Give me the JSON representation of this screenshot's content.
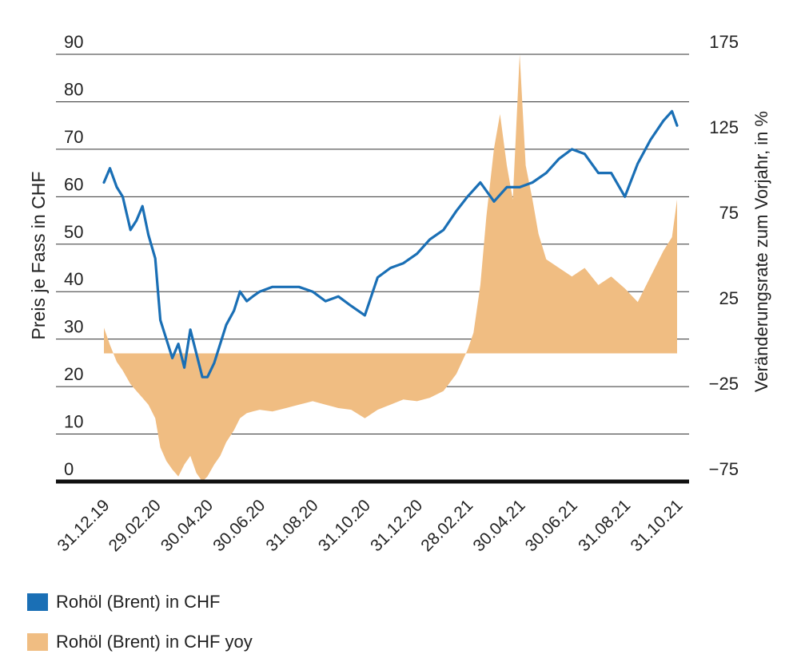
{
  "chart_data": {
    "type": "line+area",
    "y_left": {
      "label": "Preis je Fass in CHF",
      "min": 0,
      "max": 90,
      "ticks": [
        "0",
        "10",
        "20",
        "30",
        "40",
        "50",
        "60",
        "70",
        "80",
        "90"
      ]
    },
    "y_right": {
      "label": "Veränderungsrate zum Vorjahr, in %",
      "min": -75,
      "max": 175,
      "ticks": [
        "175",
        "125",
        "75",
        "25",
        "−25",
        "−75"
      ]
    },
    "x_ticks": [
      "31.12.19",
      "29.02.20",
      "30.04.20",
      "30.06.20",
      "31.08.20",
      "31.10.20",
      "31.12.20",
      "28.02.21",
      "30.04.21",
      "30.06.21",
      "31.08.21",
      "31.10.21"
    ],
    "series": [
      {
        "name": "Rohöl (Brent) in CHF",
        "axis": "left",
        "color": "#1a6fb5",
        "x": [
          "31.12.19",
          "07.01.20",
          "15.01.20",
          "22.01.20",
          "31.01.20",
          "07.02.20",
          "14.02.20",
          "21.02.20",
          "29.02.20",
          "06.03.20",
          "13.03.20",
          "20.03.20",
          "27.03.20",
          "03.04.20",
          "10.04.20",
          "17.04.20",
          "24.04.20",
          "30.04.20",
          "08.05.20",
          "15.05.20",
          "22.05.20",
          "31.05.20",
          "07.06.20",
          "15.06.20",
          "22.06.20",
          "30.06.20",
          "15.07.20",
          "31.07.20",
          "15.08.20",
          "31.08.20",
          "15.09.20",
          "30.09.20",
          "15.10.20",
          "31.10.20",
          "15.11.20",
          "30.11.20",
          "15.12.20",
          "31.12.20",
          "15.01.21",
          "31.01.21",
          "15.02.21",
          "28.02.21",
          "15.03.21",
          "31.03.21",
          "15.04.21",
          "30.04.21",
          "15.05.21",
          "31.05.21",
          "15.06.21",
          "30.06.21",
          "15.07.21",
          "31.07.21",
          "15.08.21",
          "31.08.21",
          "15.09.21",
          "30.09.21",
          "15.10.21",
          "25.10.21",
          "31.10.21"
        ],
        "values": [
          63,
          66,
          62,
          60,
          53,
          55,
          58,
          52,
          47,
          34,
          30,
          26,
          29,
          24,
          32,
          27,
          22,
          22,
          25,
          29,
          33,
          36,
          40,
          38,
          39,
          40,
          41,
          41,
          41,
          40,
          38,
          39,
          37,
          35,
          43,
          45,
          46,
          48,
          51,
          53,
          57,
          60,
          63,
          59,
          62,
          62,
          63,
          65,
          68,
          70,
          69,
          65,
          65,
          60,
          67,
          72,
          76,
          78,
          75
        ]
      },
      {
        "name": "Rohöl (Brent) in CHF yoy",
        "axis": "right",
        "color": "#f0bd82",
        "x": [
          "31.12.19",
          "07.01.20",
          "15.01.20",
          "22.01.20",
          "31.01.20",
          "07.02.20",
          "14.02.20",
          "21.02.20",
          "29.02.20",
          "06.03.20",
          "13.03.20",
          "20.03.20",
          "27.03.20",
          "03.04.20",
          "10.04.20",
          "17.04.20",
          "24.04.20",
          "30.04.20",
          "08.05.20",
          "15.05.20",
          "22.05.20",
          "31.05.20",
          "07.06.20",
          "15.06.20",
          "22.06.20",
          "30.06.20",
          "15.07.20",
          "31.07.20",
          "15.08.20",
          "31.08.20",
          "15.09.20",
          "30.09.20",
          "15.10.20",
          "31.10.20",
          "15.11.20",
          "30.11.20",
          "15.12.20",
          "31.12.20",
          "15.01.21",
          "31.01.21",
          "15.02.21",
          "28.02.21",
          "07.03.21",
          "15.03.21",
          "22.03.21",
          "31.03.21",
          "07.04.21",
          "15.04.21",
          "22.04.21",
          "30.04.21",
          "07.05.21",
          "15.05.21",
          "22.05.21",
          "31.05.21",
          "15.06.21",
          "30.06.21",
          "15.07.21",
          "31.07.21",
          "15.08.21",
          "31.08.21",
          "15.09.21",
          "30.09.21",
          "15.10.21",
          "25.10.21",
          "31.10.21"
        ],
        "values": [
          15,
          5,
          -5,
          -10,
          -18,
          -22,
          -26,
          -30,
          -38,
          -55,
          -63,
          -68,
          -72,
          -65,
          -60,
          -70,
          -75,
          -72,
          -65,
          -60,
          -52,
          -45,
          -38,
          -35,
          -34,
          -33,
          -34,
          -32,
          -30,
          -28,
          -30,
          -32,
          -33,
          -38,
          -33,
          -30,
          -27,
          -28,
          -26,
          -22,
          -12,
          2,
          12,
          40,
          80,
          120,
          140,
          110,
          90,
          175,
          110,
          90,
          70,
          55,
          50,
          45,
          50,
          40,
          45,
          38,
          30,
          45,
          60,
          68,
          90
        ]
      }
    ]
  }
}
